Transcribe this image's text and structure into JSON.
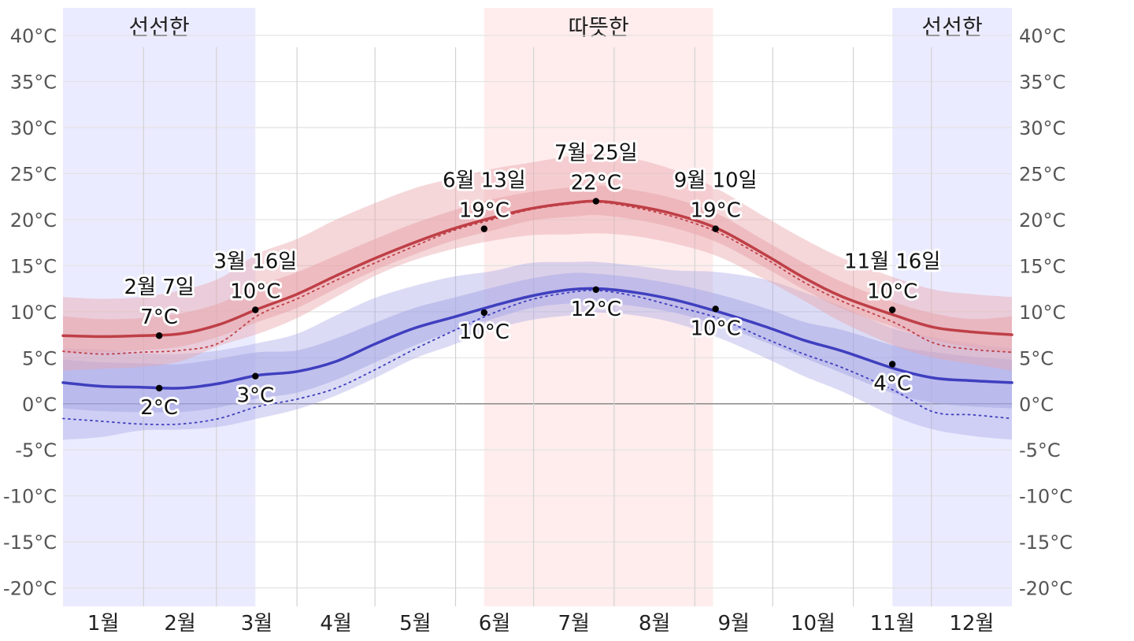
{
  "chart_data": {
    "type": "line",
    "title": "",
    "xlabel": "",
    "ylabel": "",
    "ylim": [
      -22,
      43
    ],
    "grid": true,
    "y_ticks": [
      "40°C",
      "35°C",
      "30°C",
      "25°C",
      "20°C",
      "15°C",
      "10°C",
      "5°C",
      "0°C",
      "-5°C",
      "-10°C",
      "-15°C",
      "-20°C"
    ],
    "y_tick_values": [
      40,
      35,
      30,
      25,
      20,
      15,
      10,
      5,
      0,
      -5,
      -10,
      -15,
      -20
    ],
    "months": [
      "1월",
      "2월",
      "3월",
      "4월",
      "5월",
      "6월",
      "7월",
      "8월",
      "9월",
      "10월",
      "11월",
      "12월"
    ],
    "seasons": [
      {
        "label": "선선한",
        "start_day": 0,
        "end_day": 74,
        "color": "#ebebff"
      },
      {
        "label": "따뜻한",
        "start_day": 162,
        "end_day": 250,
        "color": "#ffeded"
      },
      {
        "label": "선선한",
        "start_day": 319,
        "end_day": 365,
        "color": "#ebebff"
      }
    ],
    "colors": {
      "high": "#bf3f47",
      "low": "#3f3fbf",
      "high_band": "#e8a6ac",
      "low_band": "#a6a6e6"
    },
    "x_days": [
      0,
      15,
      30,
      45,
      60,
      75,
      90,
      105,
      120,
      135,
      150,
      165,
      180,
      195,
      206,
      220,
      235,
      252,
      270,
      285,
      300,
      320,
      335,
      350,
      365
    ],
    "series": [
      {
        "key": "high",
        "values": [
          7.4,
          7.3,
          7.4,
          7.6,
          8.6,
          10.3,
          11.9,
          13.9,
          15.8,
          17.5,
          19.0,
          20.2,
          21.2,
          21.8,
          22.0,
          21.5,
          20.6,
          19.0,
          16.2,
          13.7,
          11.6,
          9.6,
          8.3,
          7.8,
          7.5
        ]
      },
      {
        "key": "low",
        "values": [
          2.3,
          1.9,
          1.8,
          1.7,
          2.2,
          3.1,
          3.5,
          4.6,
          6.5,
          8.2,
          9.4,
          10.6,
          11.7,
          12.4,
          12.5,
          12.1,
          11.3,
          10.0,
          8.4,
          6.9,
          5.7,
          3.8,
          2.8,
          2.5,
          2.3
        ]
      },
      {
        "key": "high_perceived",
        "values": [
          5.7,
          5.4,
          5.6,
          5.8,
          6.6,
          9.6,
          11.4,
          13.4,
          15.3,
          17.1,
          18.8,
          20.0,
          21.1,
          21.7,
          21.9,
          21.3,
          20.3,
          18.6,
          15.8,
          13.2,
          11.1,
          8.8,
          6.6,
          5.9,
          5.6
        ]
      },
      {
        "key": "low_perceived",
        "values": [
          -1.6,
          -1.9,
          -2.2,
          -2.2,
          -1.6,
          -0.3,
          0.5,
          1.7,
          3.7,
          5.9,
          7.9,
          9.8,
          11.3,
          12.1,
          12.3,
          11.7,
          10.6,
          9.3,
          7.1,
          5.4,
          3.9,
          1.4,
          -0.9,
          -1.2,
          -1.6
        ]
      }
    ],
    "bands": [
      {
        "key": "high_outer",
        "lower": [
          3.6,
          3.8,
          4.0,
          4.6,
          6.3,
          7.6,
          9.3,
          11.6,
          13.9,
          15.6,
          16.8,
          17.7,
          18.3,
          18.4,
          18.5,
          18.2,
          17.4,
          16.0,
          13.5,
          11.2,
          8.8,
          6.3,
          5.0,
          4.3,
          3.6
        ],
        "upper": [
          11.6,
          11.4,
          11.6,
          12.3,
          13.6,
          16.3,
          17.9,
          20.0,
          21.8,
          23.4,
          24.5,
          25.5,
          26.2,
          26.9,
          27.1,
          26.6,
          25.4,
          23.3,
          20.3,
          17.9,
          15.8,
          13.7,
          12.4,
          11.9,
          11.6
        ]
      },
      {
        "key": "high_inner",
        "lower": [
          5.5,
          5.6,
          5.8,
          6.2,
          7.3,
          8.9,
          10.4,
          12.5,
          14.5,
          16.2,
          17.7,
          18.8,
          19.9,
          20.3,
          20.5,
          20.0,
          19.1,
          17.5,
          14.8,
          12.4,
          10.3,
          8.3,
          6.9,
          6.1,
          5.5
        ],
        "upper": [
          9.5,
          9.2,
          9.3,
          9.8,
          10.9,
          12.8,
          14.3,
          16.1,
          17.9,
          19.6,
          21.0,
          22.2,
          23.0,
          23.5,
          23.7,
          23.2,
          22.3,
          20.6,
          17.7,
          15.3,
          13.2,
          11.0,
          9.8,
          9.2,
          9.5
        ]
      },
      {
        "key": "low_outer",
        "lower": [
          -3.9,
          -3.6,
          -2.9,
          -2.8,
          -2.5,
          -1.6,
          -0.6,
          0.9,
          2.8,
          4.9,
          6.4,
          8.0,
          9.1,
          9.6,
          9.9,
          9.6,
          8.8,
          7.2,
          5.0,
          3.0,
          1.3,
          -1.4,
          -2.8,
          -3.5,
          -3.9
        ],
        "upper": [
          6.0,
          5.9,
          5.5,
          5.4,
          5.8,
          6.6,
          7.6,
          9.6,
          11.5,
          12.8,
          13.8,
          14.4,
          15.3,
          15.4,
          15.4,
          15.0,
          14.5,
          14.3,
          13.5,
          12.1,
          10.5,
          8.1,
          7.2,
          6.5,
          6.0
        ]
      },
      {
        "key": "low_inner",
        "lower": [
          -0.5,
          -0.8,
          -0.9,
          -0.9,
          -0.4,
          0.6,
          1.2,
          2.6,
          4.5,
          6.3,
          7.9,
          9.2,
          10.4,
          10.9,
          11.0,
          10.6,
          9.9,
          8.6,
          6.7,
          5.0,
          3.3,
          1.1,
          0.1,
          -0.3,
          -0.5
        ],
        "upper": [
          4.8,
          4.5,
          4.4,
          4.3,
          4.9,
          5.6,
          5.8,
          7.1,
          8.8,
          10.4,
          11.5,
          12.6,
          13.6,
          14.2,
          14.1,
          13.7,
          13.0,
          11.9,
          10.4,
          8.9,
          8.0,
          6.3,
          5.6,
          5.1,
          4.8
        ]
      }
    ],
    "annotations": [
      {
        "day": 37,
        "value": 7.4,
        "date": "2월 7일",
        "label": "7°C",
        "series": "high",
        "pos": "above"
      },
      {
        "day": 37,
        "value": 1.7,
        "date": "",
        "label": "2°C",
        "series": "low",
        "pos": "below"
      },
      {
        "day": 74,
        "value": 10.2,
        "date": "3월 16일",
        "label": "10°C",
        "series": "high",
        "pos": "above"
      },
      {
        "day": 74,
        "value": 3.0,
        "date": "",
        "label": "3°C",
        "series": "low",
        "pos": "below"
      },
      {
        "day": 162,
        "value": 19.0,
        "date": "6월 13일",
        "label": "19°C",
        "series": "high",
        "pos": "above"
      },
      {
        "day": 162,
        "value": 9.9,
        "date": "",
        "label": "10°C",
        "series": "low",
        "pos": "below"
      },
      {
        "day": 205,
        "value": 22.0,
        "date": "7월 25일",
        "label": "22°C",
        "series": "high",
        "pos": "above"
      },
      {
        "day": 205,
        "value": 12.4,
        "date": "",
        "label": "12°C",
        "series": "low",
        "pos": "below"
      },
      {
        "day": 251,
        "value": 19.0,
        "date": "9월 10일",
        "label": "19°C",
        "series": "high",
        "pos": "above"
      },
      {
        "day": 251,
        "value": 10.3,
        "date": "",
        "label": "10°C",
        "series": "low",
        "pos": "below"
      },
      {
        "day": 319,
        "value": 10.2,
        "date": "11월 16일",
        "label": "10°C",
        "series": "high",
        "pos": "above"
      },
      {
        "day": 319,
        "value": 4.3,
        "date": "",
        "label": "4°C",
        "series": "low",
        "pos": "below"
      }
    ]
  }
}
